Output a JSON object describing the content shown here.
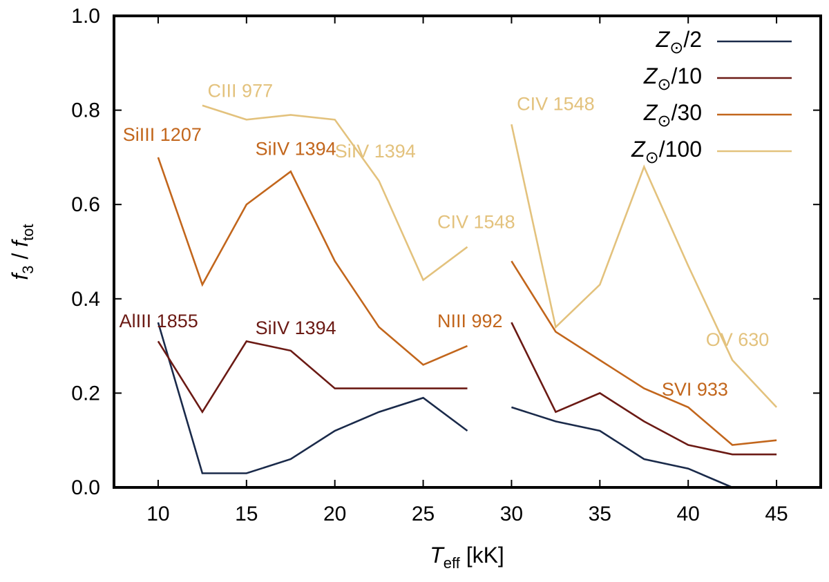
{
  "chart_data": {
    "type": "line",
    "xlabel": {
      "symbol": "T",
      "subscript": "eff",
      "unit": " [kK]"
    },
    "ylabel": {
      "symbol_a": "f",
      "sub_a": "3",
      "sep": " / ",
      "symbol_b": "f",
      "sub_b": "tot"
    },
    "xlim": [
      7.5,
      47.5
    ],
    "ylim": [
      0.0,
      1.0
    ],
    "xticks": [
      10,
      15,
      20,
      25,
      30,
      35,
      40,
      45
    ],
    "xtick_labels": [
      "10",
      "15",
      "20",
      "25",
      "30",
      "35",
      "40",
      "45"
    ],
    "yticks": [
      0.0,
      0.2,
      0.4,
      0.6,
      0.8,
      1.0
    ],
    "ytick_labels": [
      "0.0",
      "0.2",
      "0.4",
      "0.6",
      "0.8",
      "1.0"
    ],
    "legend_position": "top-right",
    "series": [
      {
        "name": "Z☉/2",
        "legend": {
          "symbol": "Z",
          "sub": "⊙",
          "suffix": "/2"
        },
        "color": "#1a2a4a",
        "segments": [
          [
            [
              10,
              0.35
            ],
            [
              12.5,
              0.03
            ],
            [
              15,
              0.03
            ],
            [
              17.5,
              0.06
            ],
            [
              20,
              0.12
            ],
            [
              22.5,
              0.16
            ],
            [
              25,
              0.19
            ],
            [
              27.5,
              0.12
            ]
          ],
          [
            [
              30,
              0.17
            ],
            [
              32.5,
              0.14
            ],
            [
              35,
              0.12
            ],
            [
              37.5,
              0.06
            ],
            [
              40,
              0.04
            ],
            [
              42.5,
              0.0
            ]
          ]
        ]
      },
      {
        "name": "Z☉/10",
        "legend": {
          "symbol": "Z",
          "sub": "⊙",
          "suffix": "/10"
        },
        "color": "#6b1a14",
        "segments": [
          [
            [
              10,
              0.31
            ],
            [
              12.5,
              0.16
            ],
            [
              15,
              0.31
            ],
            [
              17.5,
              0.29
            ],
            [
              20,
              0.21
            ],
            [
              22.5,
              0.21
            ],
            [
              25,
              0.21
            ],
            [
              27.5,
              0.21
            ]
          ],
          [
            [
              30,
              0.35
            ],
            [
              32.5,
              0.16
            ],
            [
              35,
              0.2
            ],
            [
              37.5,
              0.14
            ],
            [
              40,
              0.09
            ],
            [
              42.5,
              0.07
            ],
            [
              45,
              0.07
            ]
          ]
        ]
      },
      {
        "name": "Z☉/30",
        "legend": {
          "symbol": "Z",
          "sub": "⊙",
          "suffix": "/30"
        },
        "color": "#c2661c",
        "segments": [
          [
            [
              10,
              0.7
            ],
            [
              12.5,
              0.43
            ],
            [
              15,
              0.6
            ],
            [
              17.5,
              0.67
            ],
            [
              20,
              0.48
            ],
            [
              22.5,
              0.34
            ],
            [
              25,
              0.26
            ],
            [
              27.5,
              0.3
            ]
          ],
          [
            [
              30,
              0.48
            ],
            [
              32.5,
              0.33
            ],
            [
              35,
              0.27
            ],
            [
              37.5,
              0.21
            ],
            [
              40,
              0.17
            ],
            [
              42.5,
              0.09
            ],
            [
              45,
              0.1
            ]
          ]
        ]
      },
      {
        "name": "Z☉/100",
        "legend": {
          "symbol": "Z",
          "sub": "⊙",
          "suffix": "/100"
        },
        "color": "#e3c27d",
        "segments": [
          [
            [
              12.5,
              0.81
            ],
            [
              15,
              0.78
            ],
            [
              17.5,
              0.79
            ],
            [
              20,
              0.78
            ],
            [
              22.5,
              0.65
            ],
            [
              25,
              0.44
            ],
            [
              27.5,
              0.51
            ]
          ],
          [
            [
              30,
              0.77
            ],
            [
              32.5,
              0.34
            ],
            [
              35,
              0.43
            ],
            [
              37.5,
              0.68
            ],
            [
              40,
              0.47
            ],
            [
              42.5,
              0.27
            ],
            [
              45,
              0.17
            ]
          ]
        ]
      }
    ],
    "annotations": [
      {
        "text": "CIII 977",
        "x": 12.8,
        "y": 0.828,
        "color": "#e3c27d"
      },
      {
        "text": "CIV 1548",
        "x": 30.3,
        "y": 0.8,
        "color": "#e3c27d"
      },
      {
        "text": "SiIV 1394",
        "x": 20,
        "y": 0.7,
        "color": "#e3c27d"
      },
      {
        "text": "CIV 1548",
        "x": 25.8,
        "y": 0.55,
        "color": "#e3c27d"
      },
      {
        "text": "OV 630",
        "x": 41,
        "y": 0.3,
        "color": "#e3c27d"
      },
      {
        "text": "SiIII 1207",
        "x": 8,
        "y": 0.735,
        "color": "#c2661c"
      },
      {
        "text": "SiIV 1394",
        "x": 15.5,
        "y": 0.705,
        "color": "#c2661c"
      },
      {
        "text": "NIII 992",
        "x": 25.8,
        "y": 0.34,
        "color": "#c2661c"
      },
      {
        "text": "SVI 933",
        "x": 38.5,
        "y": 0.195,
        "color": "#c2661c"
      },
      {
        "text": "AlIII 1855",
        "x": 7.8,
        "y": 0.34,
        "color": "#6b1a14"
      },
      {
        "text": "SiIV 1394",
        "x": 15.5,
        "y": 0.325,
        "color": "#6b1a14"
      }
    ]
  }
}
